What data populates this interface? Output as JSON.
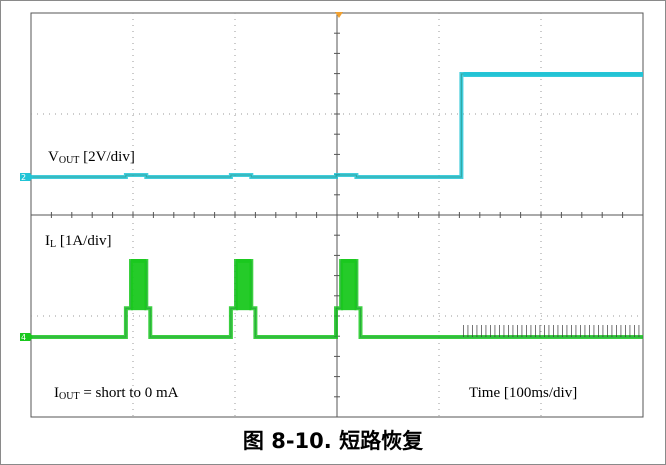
{
  "caption": "图 8-10. 短路恢复",
  "chart_data": {
    "type": "line",
    "title": "",
    "annotations": {
      "vout_main": "V",
      "vout_sub": "OUT",
      "vout_scale": " [2V/div]",
      "il_main": "I",
      "il_sub": "L",
      "il_scale": " [1A/div]",
      "iout_main": "I",
      "iout_sub": "OUT",
      "iout_rest": " = short to 0 mA",
      "timebase": "Time [100ms/div]"
    },
    "channel_markers": [
      "2",
      "4"
    ],
    "grid": true,
    "divisions": {
      "x": 6,
      "y": 4
    },
    "x_unit": "ms",
    "x_range": [
      0,
      600
    ],
    "series": [
      {
        "name": "VOUT",
        "color": "#21c4d6",
        "unit": "V",
        "baseline_y": 0,
        "points": [
          [
            0,
            0
          ],
          [
            93,
            0
          ],
          [
            93,
            0.12
          ],
          [
            113,
            0.12
          ],
          [
            113,
            0
          ],
          [
            196,
            0
          ],
          [
            196,
            0.12
          ],
          [
            216,
            0.12
          ],
          [
            216,
            0
          ],
          [
            299,
            0
          ],
          [
            299,
            0.12
          ],
          [
            319,
            0.12
          ],
          [
            319,
            0
          ],
          [
            422,
            0
          ],
          [
            422,
            6.1
          ],
          [
            600,
            6.1
          ]
        ]
      },
      {
        "name": "IL",
        "color": "#19c81e",
        "unit": "A",
        "baseline_y": 0,
        "points": [
          [
            0,
            0
          ],
          [
            93,
            0
          ],
          [
            93,
            0.55
          ],
          [
            98,
            0.55
          ],
          [
            98,
            1.45
          ],
          [
            113,
            1.45
          ],
          [
            113,
            0.55
          ],
          [
            117,
            0.55
          ],
          [
            117,
            0
          ],
          [
            196,
            0
          ],
          [
            196,
            0.55
          ],
          [
            201,
            0.55
          ],
          [
            201,
            1.45
          ],
          [
            216,
            1.45
          ],
          [
            216,
            0.55
          ],
          [
            220,
            0.55
          ],
          [
            220,
            0
          ],
          [
            299,
            0
          ],
          [
            299,
            0.55
          ],
          [
            304,
            0.55
          ],
          [
            304,
            1.45
          ],
          [
            319,
            1.45
          ],
          [
            319,
            0.55
          ],
          [
            323,
            0.55
          ],
          [
            323,
            0
          ],
          [
            600,
            0
          ]
        ],
        "ripple_region": [
          422,
          600
        ]
      }
    ]
  }
}
